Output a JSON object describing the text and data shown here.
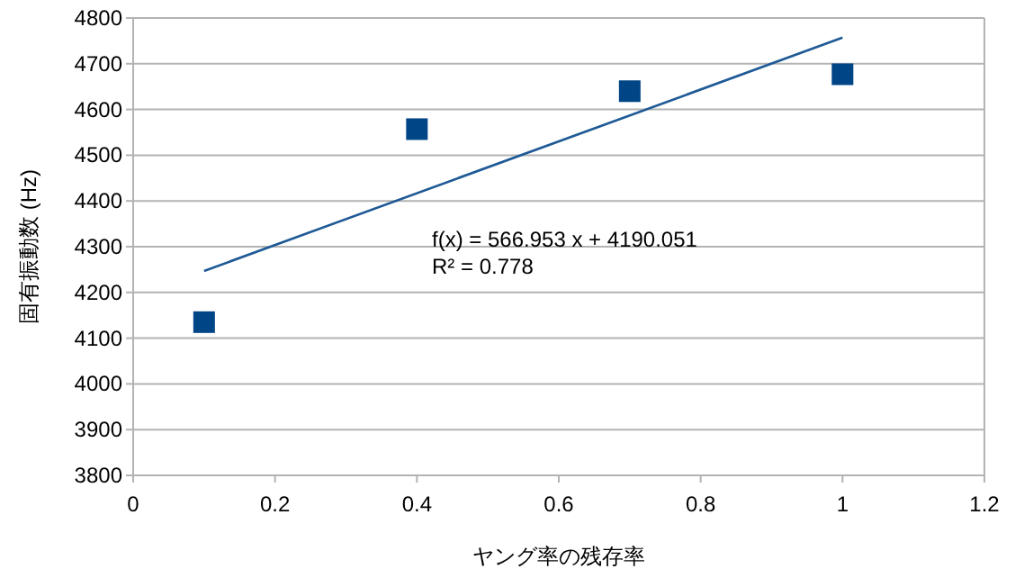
{
  "chart_data": {
    "type": "scatter",
    "xlabel": "ヤング率の残存率",
    "ylabel": "固有振動数 (Hz)",
    "annotations": [
      "f(x) = 566.953 x + 4190.051",
      "R² = 0.778"
    ],
    "series": [
      {
        "color": "#004586",
        "marker": "square",
        "x": [
          0.1,
          0.4,
          0.7,
          1.0
        ],
        "values": [
          4135,
          4557,
          4640,
          4677
        ]
      },
      {
        "type": "line",
        "color": "#1f5a96",
        "marker": "none",
        "x": [
          0.1,
          1.0
        ],
        "values": [
          4247,
          4757
        ]
      }
    ],
    "xlim": [
      0,
      1.2
    ],
    "xticks": [
      0,
      0.2,
      0.4,
      0.6,
      0.8,
      1,
      1.2
    ],
    "ylim": [
      3800,
      4800
    ],
    "yticks": [
      3800,
      3900,
      4000,
      4100,
      4200,
      4300,
      4400,
      4500,
      4600,
      4700,
      4800
    ],
    "grid": "y"
  }
}
